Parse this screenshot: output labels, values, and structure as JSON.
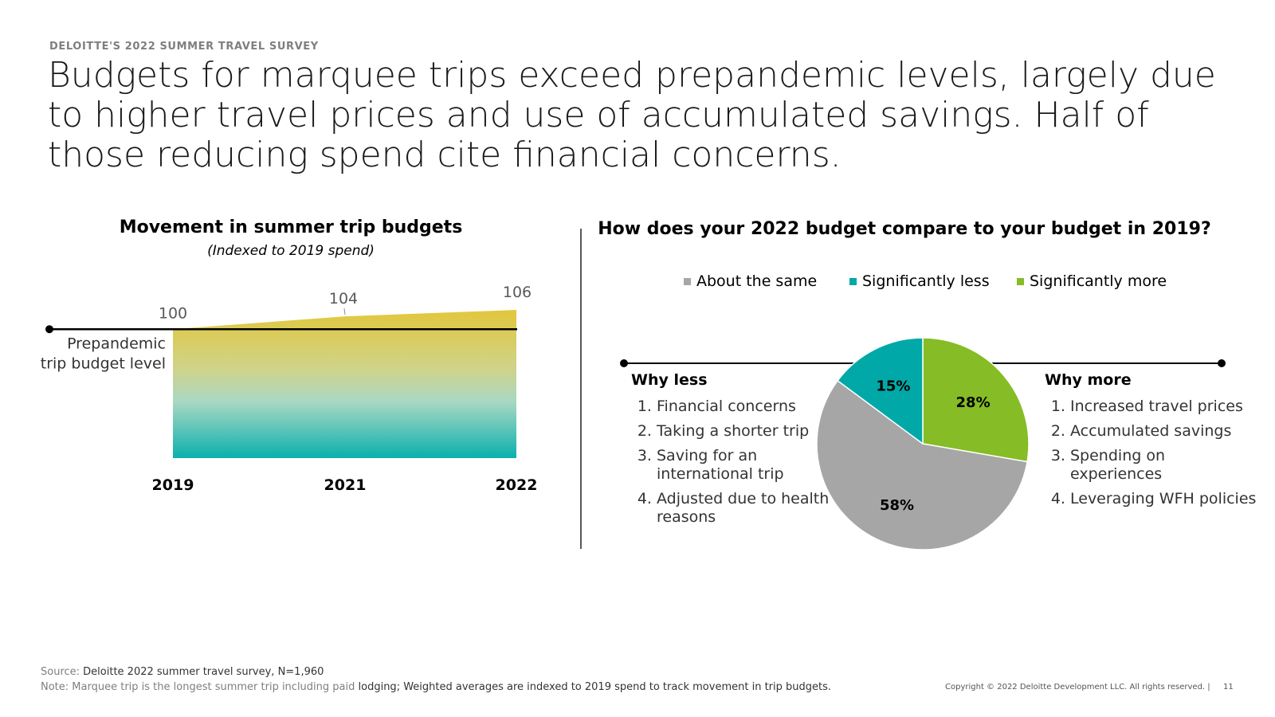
{
  "eyebrow": "DELOITTE'S 2022 SUMMER TRAVEL SURVEY",
  "headline": "Budgets for marquee trips exceed prepandemic levels, largely due to higher travel prices and use of accumulated savings. Half of those reducing spend cite financial concerns.",
  "colors": {
    "gray": "#a6a6a6",
    "teal": "#00a9a8",
    "green": "#86bc25",
    "gold": "#dcc74a"
  },
  "chart_data": [
    {
      "type": "area",
      "title": "Movement in summer trip budgets",
      "subtitle": "(Indexed to 2019 spend)",
      "categories": [
        "2019",
        "2021",
        "2022"
      ],
      "values": [
        100,
        104,
        106
      ],
      "value_labels": [
        "100",
        "104",
        "106"
      ],
      "reference_line": {
        "value": 100,
        "label_line1": "Prepandemic",
        "label_line2": "trip budget level"
      },
      "ylim": [
        60,
        106
      ],
      "fill": "gradient gold-to-teal"
    },
    {
      "type": "pie",
      "title": "How does your 2022 budget compare to your budget in 2019?",
      "slices": [
        {
          "label": "Significantly more",
          "value": 28,
          "text": "28%",
          "color": "#86bc25"
        },
        {
          "label": "About the same",
          "value": 58,
          "text": "58%",
          "color": "#a6a6a6"
        },
        {
          "label": "Significantly less",
          "value": 15,
          "text": "15%",
          "color": "#00a9a8"
        }
      ],
      "legend": [
        {
          "label": "About the same",
          "color": "#a6a6a6"
        },
        {
          "label": "Significantly less",
          "color": "#00a9a8"
        },
        {
          "label": "Significantly more",
          "color": "#86bc25"
        }
      ],
      "legend_placement": "top"
    }
  ],
  "why_less": {
    "title": "Why less",
    "items": [
      "Financial concerns",
      "Taking a shorter trip",
      "Saving for an international trip",
      "Adjusted due to health reasons"
    ]
  },
  "why_more": {
    "title": "Why more",
    "items": [
      "Increased travel prices",
      "Accumulated savings",
      "Spending on experiences",
      "Leveraging WFH policies"
    ]
  },
  "footer": {
    "source_label": "Source:",
    "source_text": "Deloitte 2022 summer travel survey, N=1,960",
    "note_label": "Note:",
    "note_text_a": "Marquee trip is the longest summer trip including paid",
    "note_text_b": "lodging; Weighted averages are indexed to 2019 spend to track movement in trip budgets.",
    "copyright": "Copyright © 2022 Deloitte Development LLC. All rights reserved.  |",
    "page_number": "11"
  }
}
